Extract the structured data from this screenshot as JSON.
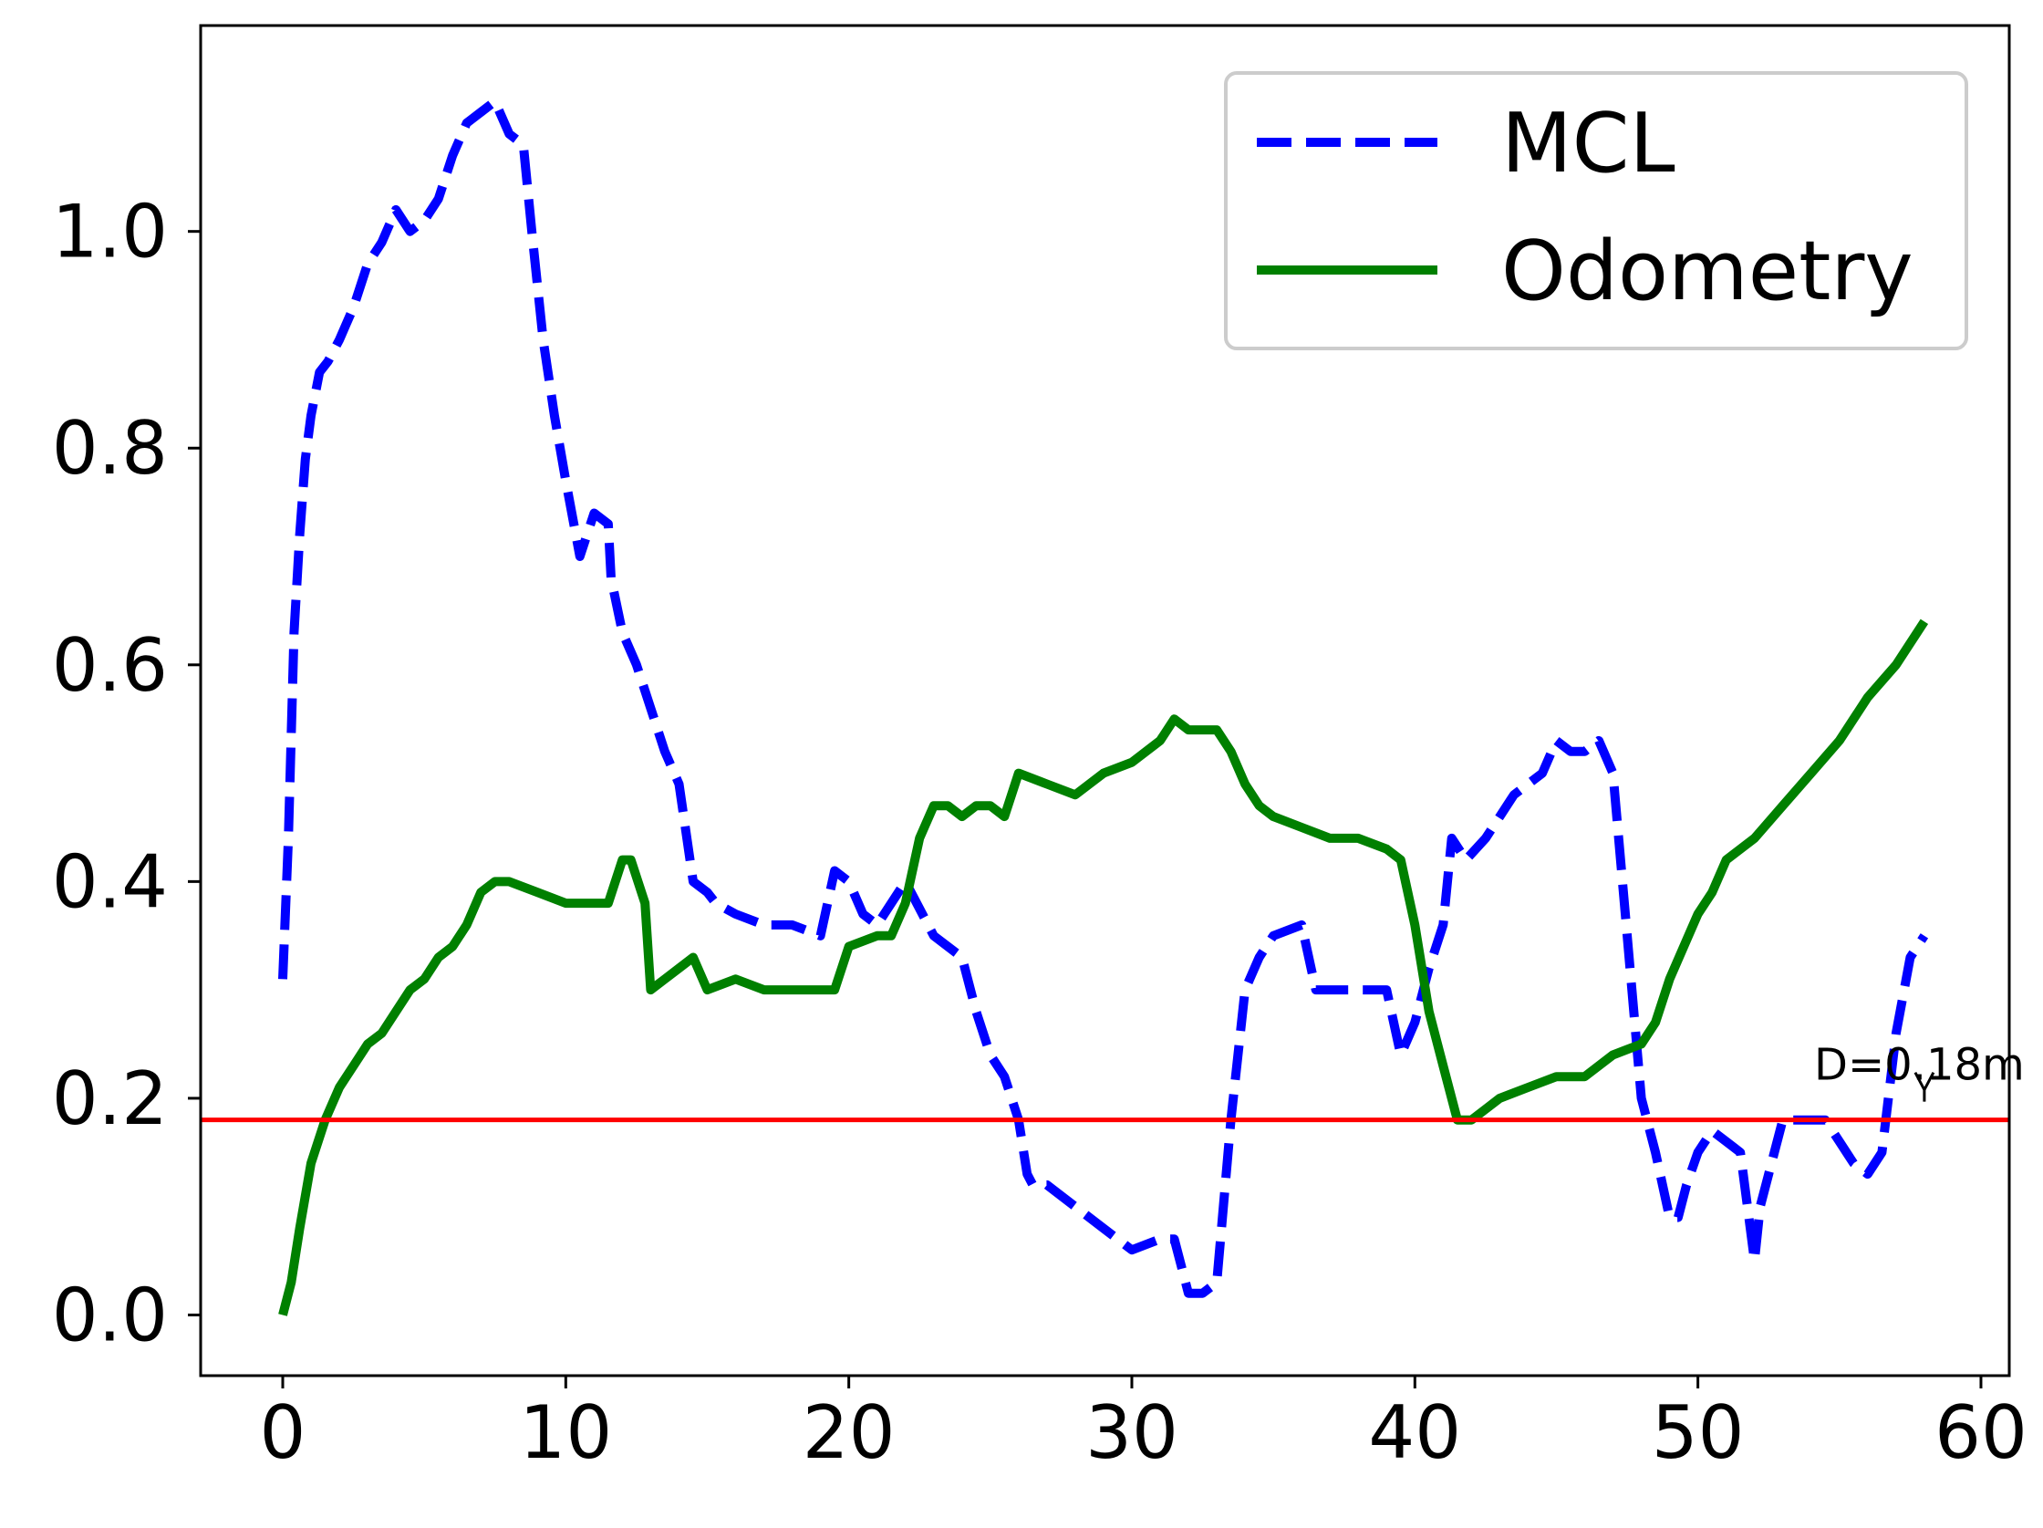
{
  "chart_data": {
    "type": "line",
    "title": "",
    "xlabel": "",
    "ylabel": "",
    "xlim": [
      -2.9,
      61.0
    ],
    "ylim": [
      -0.056,
      1.19
    ],
    "xticks": [
      0,
      10,
      20,
      30,
      40,
      50,
      60
    ],
    "yticks": [
      0.0,
      0.2,
      0.4,
      0.6,
      0.8,
      1.0
    ],
    "xtick_labels": [
      "0",
      "10",
      "20",
      "30",
      "40",
      "50",
      "60"
    ],
    "ytick_labels": [
      "0.0",
      "0.2",
      "0.4",
      "0.6",
      "0.8",
      "1.0"
    ],
    "grid": false,
    "legend_position": "top-right",
    "series": [
      {
        "name": "MCL",
        "color": "#0000ff",
        "style": "dashed",
        "x": [
          0,
          0.2,
          0.4,
          0.6,
          0.8,
          1.0,
          1.3,
          1.6,
          2.0,
          2.5,
          3.0,
          3.5,
          4.0,
          4.5,
          5.0,
          5.5,
          6.0,
          6.5,
          7.0,
          7.5,
          8.0,
          8.5,
          8.8,
          9.2,
          9.6,
          10.0,
          10.5,
          11.0,
          11.5,
          11.6,
          12.0,
          12.5,
          13.0,
          13.5,
          14.0,
          14.5,
          15.0,
          15.3,
          16.0,
          17.0,
          18.0,
          19.0,
          19.5,
          20.0,
          20.5,
          21.0,
          22.0,
          23.0,
          24.0,
          24.5,
          25.0,
          25.5,
          26.0,
          26.3,
          26.5,
          27.0,
          28.0,
          29.0,
          30.0,
          31.0,
          31.5,
          32.0,
          32.5,
          33.0,
          33.5,
          34.0,
          34.5,
          35.0,
          36.0,
          36.5,
          37.0,
          38.0,
          39.0,
          39.5,
          40.0,
          40.5,
          41.0,
          41.3,
          41.8,
          42.5,
          43.0,
          43.5,
          44.0,
          44.5,
          45.0,
          45.5,
          46.0,
          46.5,
          47.0,
          47.5,
          48.0,
          48.5,
          49.0,
          49.3,
          49.6,
          50.0,
          50.5,
          51.0,
          51.5,
          52.0,
          52.2,
          52.5,
          53.0,
          53.5,
          54.0,
          54.5,
          55.0,
          55.5,
          56.0,
          56.5,
          57.0,
          57.5,
          58.0
        ],
        "y": [
          0.31,
          0.44,
          0.63,
          0.72,
          0.79,
          0.83,
          0.87,
          0.88,
          0.9,
          0.93,
          0.97,
          0.99,
          1.02,
          1.0,
          1.01,
          1.03,
          1.07,
          1.1,
          1.11,
          1.12,
          1.09,
          1.08,
          1.0,
          0.9,
          0.83,
          0.77,
          0.7,
          0.74,
          0.73,
          0.68,
          0.63,
          0.6,
          0.56,
          0.52,
          0.49,
          0.4,
          0.39,
          0.38,
          0.37,
          0.36,
          0.36,
          0.35,
          0.41,
          0.4,
          0.37,
          0.36,
          0.4,
          0.35,
          0.33,
          0.28,
          0.24,
          0.22,
          0.18,
          0.13,
          0.12,
          0.12,
          0.1,
          0.08,
          0.06,
          0.07,
          0.07,
          0.02,
          0.02,
          0.03,
          0.18,
          0.3,
          0.33,
          0.35,
          0.36,
          0.3,
          0.3,
          0.3,
          0.3,
          0.24,
          0.27,
          0.32,
          0.36,
          0.44,
          0.42,
          0.44,
          0.46,
          0.48,
          0.49,
          0.5,
          0.53,
          0.52,
          0.52,
          0.53,
          0.5,
          0.35,
          0.2,
          0.15,
          0.09,
          0.09,
          0.12,
          0.15,
          0.17,
          0.16,
          0.15,
          0.05,
          0.1,
          0.13,
          0.18,
          0.18,
          0.18,
          0.18,
          0.16,
          0.14,
          0.13,
          0.15,
          0.26,
          0.33,
          0.35
        ]
      },
      {
        "name": "Odometry",
        "color": "#008000",
        "style": "solid",
        "x": [
          0,
          0.3,
          0.6,
          1.0,
          1.5,
          2.0,
          2.5,
          3.0,
          3.5,
          4.0,
          4.5,
          5.0,
          5.5,
          6.0,
          6.5,
          7.0,
          7.5,
          8.0,
          9.0,
          10.0,
          11.0,
          11.5,
          12.0,
          12.3,
          12.8,
          13.0,
          13.5,
          14.0,
          14.5,
          15.0,
          16.0,
          17.0,
          18.0,
          19.0,
          19.5,
          20.0,
          21.0,
          21.5,
          22.0,
          22.5,
          23.0,
          23.5,
          24.0,
          24.5,
          25.0,
          25.5,
          26.0,
          27.0,
          28.0,
          29.0,
          30.0,
          31.0,
          31.5,
          32.0,
          32.5,
          33.0,
          33.5,
          34.0,
          34.5,
          35.0,
          36.0,
          37.0,
          38.0,
          39.0,
          39.5,
          40.0,
          40.5,
          41.0,
          41.5,
          42.0,
          42.5,
          43.0,
          44.0,
          45.0,
          46.0,
          47.0,
          48.0,
          48.5,
          49.0,
          49.5,
          50.0,
          50.5,
          51.0,
          52.0,
          53.0,
          54.0,
          55.0,
          56.0,
          57.0,
          58.0
        ],
        "y": [
          0.0,
          0.03,
          0.08,
          0.14,
          0.18,
          0.21,
          0.23,
          0.25,
          0.26,
          0.28,
          0.3,
          0.31,
          0.33,
          0.34,
          0.36,
          0.39,
          0.4,
          0.4,
          0.39,
          0.38,
          0.38,
          0.38,
          0.42,
          0.42,
          0.38,
          0.3,
          0.31,
          0.32,
          0.33,
          0.3,
          0.31,
          0.3,
          0.3,
          0.3,
          0.3,
          0.34,
          0.35,
          0.35,
          0.38,
          0.44,
          0.47,
          0.47,
          0.46,
          0.47,
          0.47,
          0.46,
          0.5,
          0.49,
          0.48,
          0.5,
          0.51,
          0.53,
          0.55,
          0.54,
          0.54,
          0.54,
          0.52,
          0.49,
          0.47,
          0.46,
          0.45,
          0.44,
          0.44,
          0.43,
          0.42,
          0.36,
          0.28,
          0.23,
          0.18,
          0.18,
          0.19,
          0.2,
          0.21,
          0.22,
          0.22,
          0.24,
          0.25,
          0.27,
          0.31,
          0.34,
          0.37,
          0.39,
          0.42,
          0.44,
          0.47,
          0.5,
          0.53,
          0.57,
          0.6,
          0.64
        ]
      }
    ],
    "annotations": [
      {
        "type": "hline",
        "y": 0.18,
        "color": "#ff0000",
        "text": "D=0.18m",
        "arrow_x": 58.0
      }
    ]
  }
}
